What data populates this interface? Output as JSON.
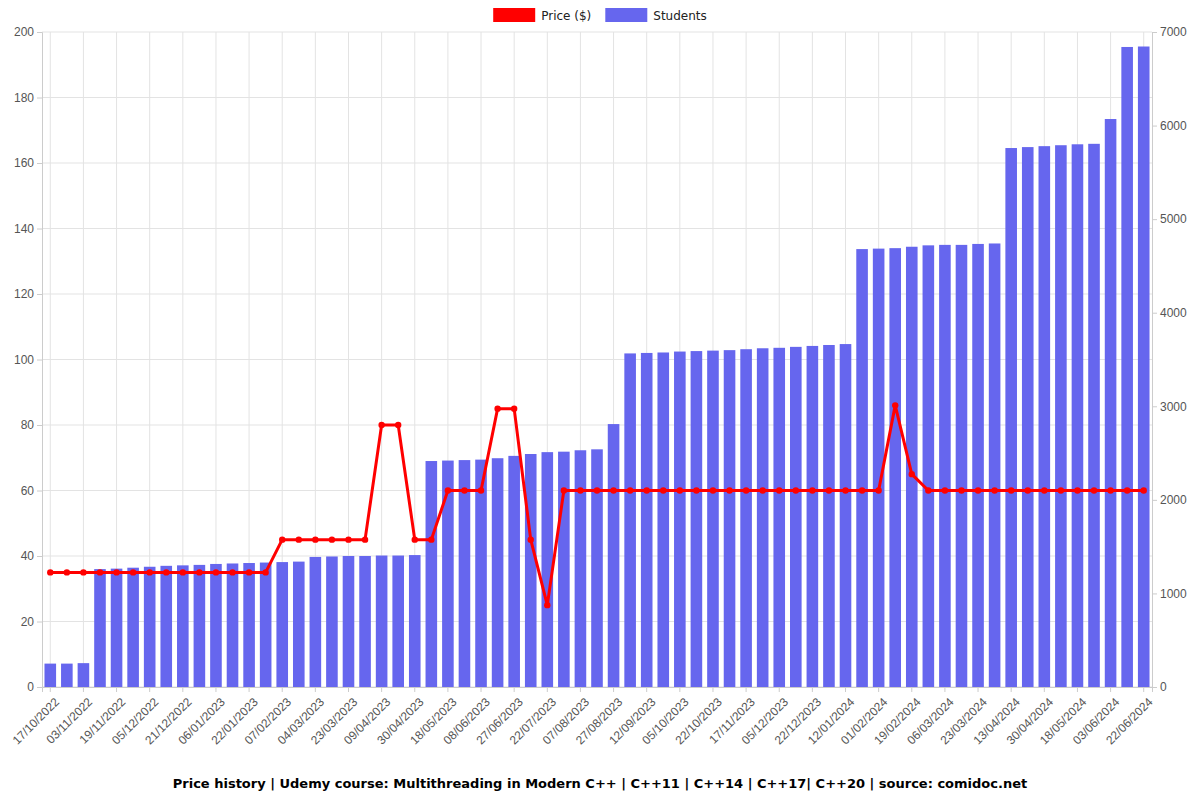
{
  "chart_data": {
    "type": "bar",
    "title": "Price history | Udemy course: Multithreading in Modern C++ | C++11 | C++14 | C++17| C++20 | source: comidoc.net",
    "categories": [
      "17/10/2022",
      null,
      "03/11/2022",
      null,
      "19/11/2022",
      null,
      "05/12/2022",
      null,
      "21/12/2022",
      null,
      "06/01/2023",
      null,
      "22/01/2023",
      null,
      "07/02/2023",
      null,
      "04/03/2023",
      null,
      "23/03/2023",
      null,
      "09/04/2023",
      null,
      "30/04/2023",
      null,
      "18/05/2023",
      null,
      "08/06/2023",
      null,
      "27/06/2023",
      null,
      "22/07/2023",
      null,
      "07/08/2023",
      null,
      "27/08/2023",
      null,
      "12/09/2023",
      null,
      "05/10/2023",
      null,
      "22/10/2023",
      null,
      "17/11/2023",
      null,
      "05/12/2023",
      null,
      "22/12/2023",
      null,
      "12/01/2024",
      null,
      "01/02/2024",
      null,
      "19/02/2024",
      null,
      "06/03/2024",
      null,
      "23/03/2024",
      null,
      "13/04/2024",
      null,
      "30/04/2024",
      null,
      "18/05/2024",
      null,
      "03/06/2024",
      null,
      "22/06/2024"
    ],
    "series": [
      {
        "name": "Price ($)",
        "type": "line",
        "color": "#ff0000",
        "marker": "circle",
        "values": [
          35,
          35,
          35,
          35,
          35,
          35,
          35,
          35,
          35,
          35,
          35,
          35,
          35,
          35,
          45,
          45,
          45,
          45,
          45,
          45,
          80,
          80,
          45,
          45,
          60,
          60,
          60,
          85,
          85,
          45,
          25,
          60,
          60,
          60,
          60,
          60,
          60,
          60,
          60,
          60,
          60,
          60,
          60,
          60,
          60,
          60,
          60,
          60,
          60,
          60,
          60,
          86,
          65,
          60,
          60,
          60,
          60,
          60,
          60,
          60,
          60,
          60,
          60,
          60,
          60,
          60,
          60
        ]
      },
      {
        "name": "Students",
        "type": "bar",
        "color": "#6666ee",
        "axis": "y2",
        "values": [
          250,
          250,
          255,
          1260,
          1265,
          1275,
          1285,
          1295,
          1300,
          1305,
          1315,
          1320,
          1325,
          1330,
          1335,
          1340,
          1390,
          1395,
          1400,
          1400,
          1405,
          1405,
          1410,
          2415,
          2420,
          2425,
          2430,
          2445,
          2470,
          2490,
          2510,
          2515,
          2530,
          2540,
          2810,
          3565,
          3570,
          3575,
          3585,
          3590,
          3595,
          3600,
          3610,
          3620,
          3625,
          3635,
          3645,
          3655,
          3665,
          4680,
          4685,
          4690,
          4705,
          4720,
          4725,
          4725,
          4735,
          4740,
          5760,
          5770,
          5780,
          5790,
          5800,
          5805,
          6070,
          6840,
          6845
        ]
      }
    ],
    "ylim": [
      0,
      200
    ],
    "yticks": [
      0,
      20,
      40,
      60,
      80,
      100,
      120,
      140,
      160,
      180,
      200
    ],
    "y2lim": [
      0,
      7000
    ],
    "y2ticks": [
      0,
      1000,
      2000,
      3000,
      4000,
      5000,
      6000,
      7000
    ],
    "grid": true,
    "legend": "top"
  }
}
